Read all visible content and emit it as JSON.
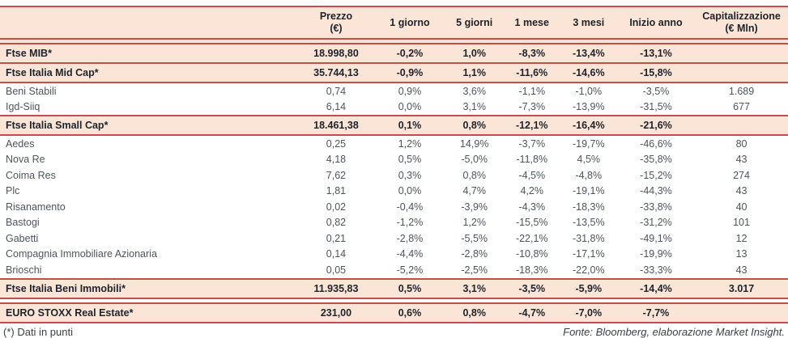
{
  "colors": {
    "accent_line": "#C0504D",
    "band_background": "#FBE5D6",
    "index_text": "#20242E",
    "stock_text": "#4F545E"
  },
  "chart_data": {
    "type": "table",
    "title": "",
    "columns": [
      {
        "key": "prezzo",
        "lines": [
          "Prezzo",
          "(€)"
        ]
      },
      {
        "key": "1-giorno",
        "lines": [
          "1 giorno"
        ]
      },
      {
        "key": "5-giorni",
        "lines": [
          "5 giorni"
        ]
      },
      {
        "key": "1-mese",
        "lines": [
          "1 mese"
        ]
      },
      {
        "key": "3-mesi",
        "lines": [
          "3 mesi"
        ]
      },
      {
        "key": "inizio-anno",
        "lines": [
          "Inizio anno"
        ]
      },
      {
        "key": "capitalizzazione",
        "lines": [
          "Capitalizzazione",
          "(€ Mln)"
        ]
      }
    ],
    "rows": [
      {
        "name": "Ftse MIB*",
        "type": "index",
        "values": [
          "18.998,80",
          "-0,2%",
          "1,0%",
          "-8,3%",
          "-13,4%",
          "-13,1%",
          ""
        ]
      },
      {
        "name": "Ftse Italia Mid Cap*",
        "type": "index",
        "values": [
          "35.744,13",
          "-0,9%",
          "1,1%",
          "-11,6%",
          "-14,6%",
          "-15,8%",
          ""
        ]
      },
      {
        "name": "Beni Stabili",
        "type": "stock",
        "values": [
          "0,74",
          "0,9%",
          "3,6%",
          "-1,1%",
          "-1,0%",
          "-3,5%",
          "1.689"
        ]
      },
      {
        "name": "Igd-Siiq",
        "type": "stock",
        "values": [
          "6,14",
          "0,0%",
          "3,1%",
          "-7,3%",
          "-13,9%",
          "-31,5%",
          "677"
        ]
      },
      {
        "name": "Ftse Italia Small Cap*",
        "type": "index",
        "values": [
          "18.461,38",
          "0,1%",
          "0,8%",
          "-12,1%",
          "-16,4%",
          "-21,6%",
          ""
        ]
      },
      {
        "name": "Aedes",
        "type": "stock",
        "values": [
          "0,25",
          "1,2%",
          "14,9%",
          "-3,7%",
          "-19,7%",
          "-46,6%",
          "80"
        ]
      },
      {
        "name": "Nova Re",
        "type": "stock",
        "values": [
          "4,18",
          "0,5%",
          "-5,0%",
          "-11,8%",
          "4,5%",
          "-35,8%",
          "43"
        ]
      },
      {
        "name": "Coima Res",
        "type": "stock",
        "values": [
          "7,62",
          "0,3%",
          "0,8%",
          "-4,5%",
          "-4,8%",
          "-15,2%",
          "274"
        ]
      },
      {
        "name": "Plc",
        "type": "stock",
        "values": [
          "1,81",
          "0,0%",
          "4,7%",
          "4,2%",
          "-19,1%",
          "-44,3%",
          "43"
        ]
      },
      {
        "name": "Risanamento",
        "type": "stock",
        "values": [
          "0,02",
          "-0,4%",
          "-3,9%",
          "-4,3%",
          "-18,3%",
          "-33,8%",
          "40"
        ]
      },
      {
        "name": "Bastogi",
        "type": "stock",
        "values": [
          "0,82",
          "-1,2%",
          "1,2%",
          "-15,5%",
          "-13,5%",
          "-31,2%",
          "101"
        ]
      },
      {
        "name": "Gabetti",
        "type": "stock",
        "values": [
          "0,21",
          "-2,8%",
          "-5,5%",
          "-22,1%",
          "-31,8%",
          "-49,1%",
          "12"
        ]
      },
      {
        "name": "Compagnia Immobiliare Azionaria",
        "type": "stock",
        "values": [
          "0,14",
          "-4,4%",
          "-2,8%",
          "-10,8%",
          "-17,1%",
          "-19,9%",
          "13"
        ]
      },
      {
        "name": "Brioschi",
        "type": "stock",
        "values": [
          "0,05",
          "-5,2%",
          "-2,5%",
          "-18,3%",
          "-22,0%",
          "-33,3%",
          "43"
        ]
      },
      {
        "name": "Ftse Italia Beni Immobili*",
        "type": "index",
        "values": [
          "11.935,83",
          "0,5%",
          "3,1%",
          "-3,5%",
          "-5,9%",
          "-14,4%",
          "3.017"
        ]
      },
      {
        "name": "EURO STOXX Real Estate*",
        "type": "index",
        "spacer_before": true,
        "values": [
          "231,00",
          "0,6%",
          "0,8%",
          "-4,7%",
          "-7,0%",
          "-7,7%",
          ""
        ]
      }
    ]
  },
  "footer": {
    "note": "(*) Dati in punti",
    "source": "Fonte: Bloomberg, elaborazione Market Insight."
  }
}
